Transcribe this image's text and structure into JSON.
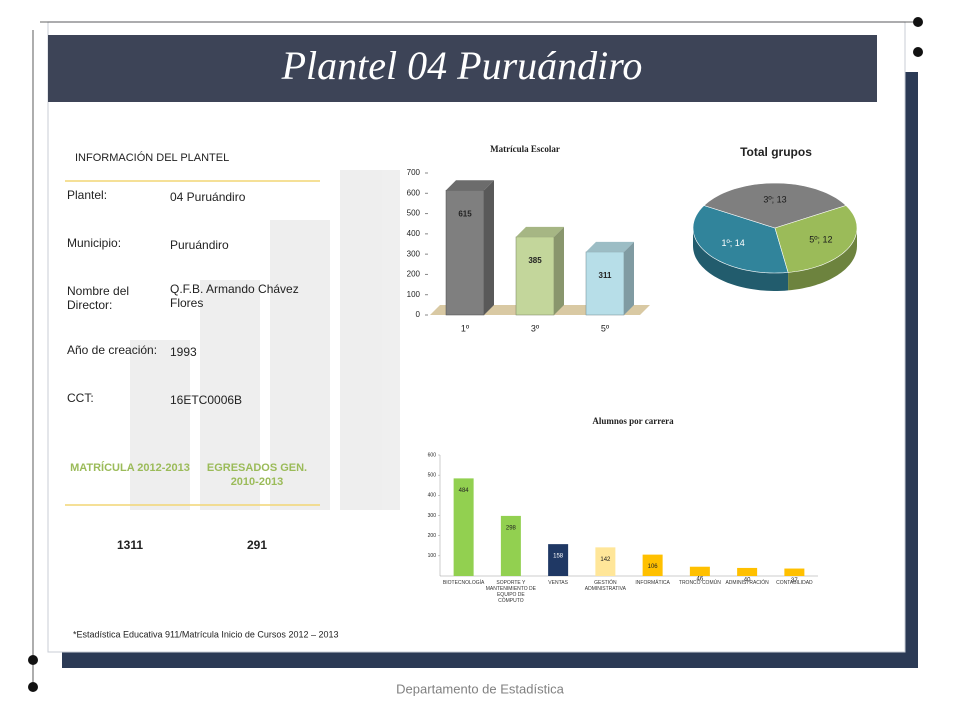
{
  "header": {
    "title": "Plantel 04 Puruándiro"
  },
  "info": {
    "title": "INFORMACIÓN DEL PLANTEL",
    "rows": [
      [
        "Plantel:",
        "04 Puruándiro"
      ],
      [
        "Municipio:",
        "Puruándiro"
      ],
      [
        "Nombre del Director:",
        "Q.F.B. Armando Chávez Flores"
      ],
      [
        "Año de creación:",
        "1993"
      ],
      [
        "CCT:",
        "16ETC0006B"
      ]
    ]
  },
  "stats": {
    "headers": [
      "MATRÍCULA 2012-2013",
      "EGRESADOS GEN. 2010-2013"
    ],
    "values": [
      "1311",
      "291"
    ]
  },
  "footnote": "*Estadística Educativa 911/Matrícula Inicio de Cursos 2012 – 2013",
  "footer": "Departamento de Estadística",
  "chart_data": [
    {
      "type": "bar3d",
      "title": "Matrícula Escolar",
      "categories": [
        "1º",
        "3º",
        "5º"
      ],
      "values": [
        615,
        385,
        311
      ],
      "colors": [
        "#7f7f7f",
        "#c3d69b",
        "#b7dee8"
      ],
      "ylim": [
        0,
        700
      ],
      "yticks": [
        0,
        100,
        200,
        300,
        400,
        500,
        600,
        700
      ]
    },
    {
      "type": "pie3d",
      "title": "Total grupos",
      "categories": [
        "1º",
        "3º",
        "5º"
      ],
      "values": [
        14,
        13,
        12
      ],
      "value_labels": [
        "1º; 14",
        "3º; 13",
        "5º; 12"
      ],
      "colors": [
        "#31849b",
        "#7f7f7f",
        "#9bbb59"
      ]
    },
    {
      "type": "bar",
      "title": "Alumnos por carrera",
      "categories": [
        "BIOTECNOLOGÍA",
        "SOPORTE Y MANTENIMIENTO DE EQUIPO DE CÓMPUTO",
        "VENTAS",
        "GESTIÓN ADMINISTRATIVA",
        "INFORMÁTICA",
        "TRONCO COMÚN",
        "ADMINISTRACIÓN",
        "CONTABILIDAD"
      ],
      "values": [
        484,
        298,
        158,
        142,
        106,
        46,
        40,
        37
      ],
      "colors": [
        "#92d050",
        "#92d050",
        "#1f3864",
        "#ffe699",
        "#ffc000",
        "#ffc000",
        "#ffc000",
        "#ffc000"
      ],
      "ylim": [
        0,
        600
      ],
      "yticks": [
        100,
        200,
        300,
        400,
        500,
        600
      ]
    }
  ]
}
